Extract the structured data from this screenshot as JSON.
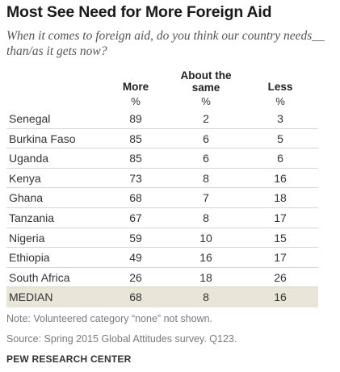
{
  "title": "Most See Need for More Foreign Aid",
  "subtitle": "When it comes to foreign aid, do you think our country needs__ than/as it gets now?",
  "chart_data": {
    "type": "table",
    "columns": [
      {
        "label": "More",
        "unit": "%"
      },
      {
        "label": "About the same",
        "unit": "%"
      },
      {
        "label": "Less",
        "unit": "%"
      }
    ],
    "rows": [
      {
        "country": "Senegal",
        "values": [
          89,
          2,
          3
        ]
      },
      {
        "country": "Burkina Faso",
        "values": [
          85,
          6,
          5
        ]
      },
      {
        "country": "Uganda",
        "values": [
          85,
          6,
          6
        ]
      },
      {
        "country": "Kenya",
        "values": [
          73,
          8,
          16
        ]
      },
      {
        "country": "Ghana",
        "values": [
          68,
          7,
          18
        ]
      },
      {
        "country": "Tanzania",
        "values": [
          67,
          8,
          17
        ]
      },
      {
        "country": "Nigeria",
        "values": [
          59,
          10,
          15
        ]
      },
      {
        "country": "Ethiopia",
        "values": [
          49,
          16,
          17
        ]
      },
      {
        "country": "South Africa",
        "values": [
          26,
          18,
          26
        ]
      }
    ],
    "median": {
      "label": "MEDIAN",
      "values": [
        68,
        8,
        16
      ]
    },
    "highlight_color": "#e9e5d8"
  },
  "notes": {
    "note": "Note: Volunteered category “none” not shown.",
    "source": "Source: Spring 2015 Global Attitudes survey. Q123."
  },
  "credit": "PEW RESEARCH CENTER"
}
